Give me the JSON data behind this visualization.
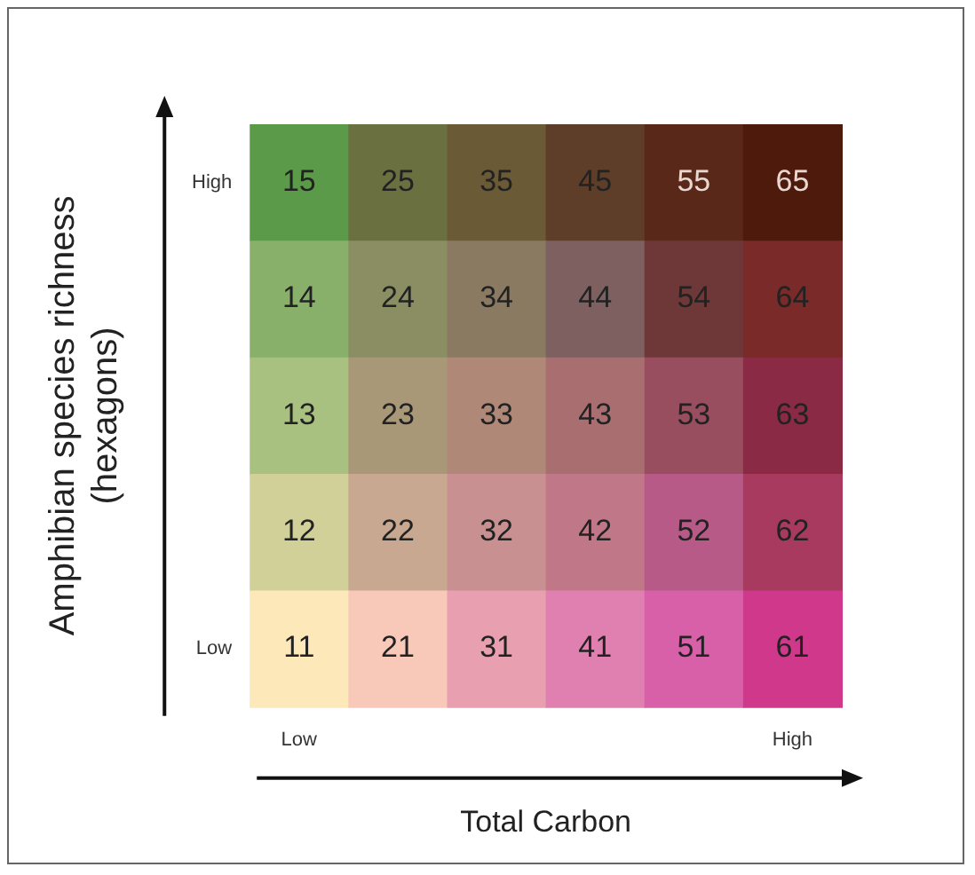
{
  "chart_data": {
    "type": "heatmap",
    "xlabel": "Total Carbon",
    "ylabel": "Amphibian species richness\n(hexagons)",
    "categories": [
      "Low",
      null,
      null,
      null,
      null,
      "High"
    ],
    "y_categories": [
      "High",
      null,
      null,
      null,
      "Low"
    ],
    "cells": [
      [
        15,
        25,
        35,
        45,
        55,
        65
      ],
      [
        14,
        24,
        34,
        44,
        54,
        64
      ],
      [
        13,
        23,
        33,
        43,
        53,
        63
      ],
      [
        12,
        22,
        32,
        42,
        52,
        62
      ],
      [
        11,
        21,
        31,
        41,
        51,
        61
      ]
    ],
    "colors": [
      [
        "#5a9a48",
        "#6b7040",
        "#6a5a35",
        "#5e3e28",
        "#5a2818",
        "#4e1a0c"
      ],
      [
        "#88b06a",
        "#8a8e62",
        "#8a7a62",
        "#7e6060",
        "#6e3838",
        "#7a2a28"
      ],
      [
        "#a8c080",
        "#a89878",
        "#b08878",
        "#a86e70",
        "#984e5e",
        "#8a2a44"
      ],
      [
        "#d0d098",
        "#c8a890",
        "#c89090",
        "#c07888",
        "#b85a88",
        "#a83a60"
      ],
      [
        "#fce8b8",
        "#f8c8b8",
        "#e8a0b0",
        "#e080b0",
        "#d860a8",
        "#d0388c"
      ]
    ],
    "data_labels": true
  }
}
